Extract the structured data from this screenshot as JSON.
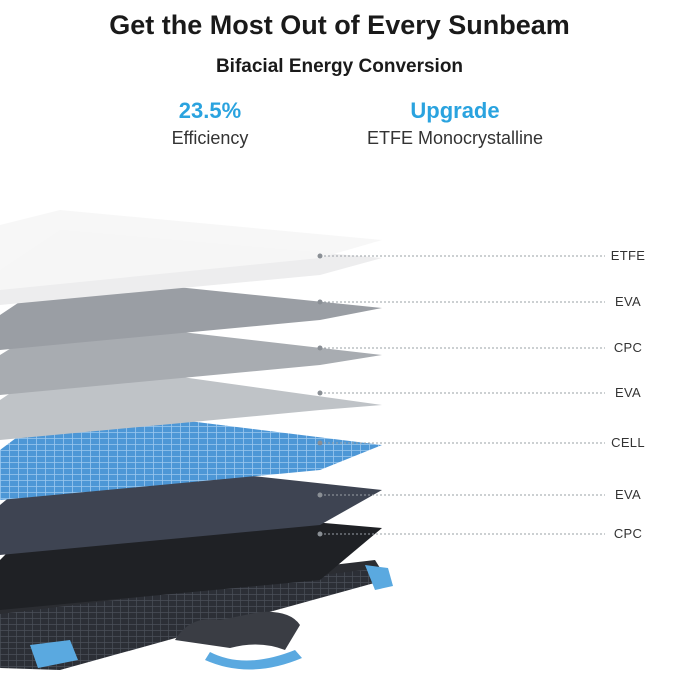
{
  "header": {
    "title": "Get the Most Out of Every Sunbeam",
    "subtitle": "Bifacial Energy Conversion"
  },
  "stats": [
    {
      "value": "23.5%",
      "label": "Efficiency"
    },
    {
      "value": "Upgrade",
      "label": "ETFE Monocrystalline"
    }
  ],
  "layers": [
    {
      "name": "ETFE"
    },
    {
      "name": "EVA"
    },
    {
      "name": "CPC"
    },
    {
      "name": "EVA"
    },
    {
      "name": "CELL"
    },
    {
      "name": "EVA"
    },
    {
      "name": "CPC"
    }
  ],
  "colors": {
    "accent": "#2aa3df",
    "handle": "#5aa9e0"
  }
}
